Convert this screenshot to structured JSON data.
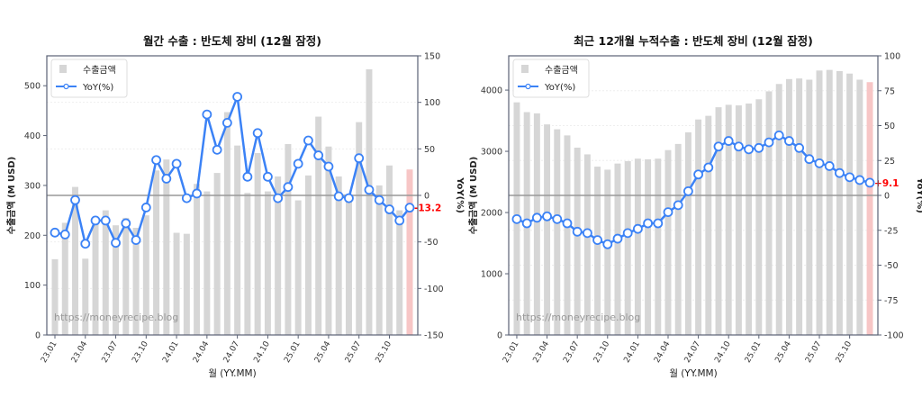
{
  "watermark": "https://moneyrecipe.blog",
  "chart_data": [
    {
      "type": "bar",
      "title": "월간 수출 : 반도체 장비 (12월 잠정)",
      "xlabel": "월 (YY.MM)",
      "ylabel": "수출금액 (M USD)",
      "y2label": "YoY(%)",
      "ylim": [
        0,
        560
      ],
      "y2lim": [
        -150,
        150
      ],
      "yticks": [
        0,
        100,
        200,
        300,
        400,
        500
      ],
      "y2ticks": [
        -150,
        -100,
        -50,
        0,
        50,
        100,
        150
      ],
      "legend": [
        "수출금액",
        "YoY(%)"
      ],
      "legend_position": "upper left",
      "xticklabels": [
        "23.01",
        "23.04",
        "23.07",
        "23.10",
        "24.01",
        "24.04",
        "24.07",
        "24.10",
        "25.01",
        "25.04",
        "25.07",
        "25.10"
      ],
      "categories": [
        "23.01",
        "23.02",
        "23.03",
        "23.04",
        "23.05",
        "23.06",
        "23.07",
        "23.08",
        "23.09",
        "23.10",
        "23.11",
        "23.12",
        "24.01",
        "24.02",
        "24.03",
        "24.04",
        "24.05",
        "24.06",
        "24.07",
        "24.08",
        "24.09",
        "24.10",
        "24.11",
        "24.12",
        "25.01",
        "25.02",
        "25.03",
        "25.04",
        "25.05",
        "25.06",
        "25.07",
        "25.08",
        "25.09",
        "25.10",
        "25.11",
        "25.12"
      ],
      "series": [
        {
          "name": "수출금액",
          "type": "bar",
          "values": [
            152,
            225,
            297,
            153,
            225,
            250,
            220,
            235,
            215,
            240,
            330,
            352,
            205,
            203,
            303,
            288,
            325,
            447,
            380,
            285,
            365,
            288,
            318,
            383,
            270,
            320,
            438,
            378,
            318,
            280,
            427,
            533,
            300,
            340,
            250,
            332
          ]
        },
        {
          "name": "YoY(%)",
          "type": "line",
          "axis": "right",
          "values": [
            -40,
            -42,
            -5,
            -52,
            -27,
            -27,
            -51,
            -30,
            -48,
            -13,
            38,
            18,
            34,
            -3,
            2,
            87,
            49,
            78,
            106,
            20,
            67,
            20,
            -3,
            9,
            34,
            59,
            43,
            31,
            -1,
            -3,
            40,
            6,
            -5,
            -15,
            -27,
            -13.2
          ]
        }
      ],
      "annotation": "-13.2",
      "highlight_last_bar": true
    },
    {
      "type": "bar",
      "title": "최근 12개월 누적수출 : 반도체 장비 (12월 잠정)",
      "xlabel": "월 (YY.MM)",
      "ylabel": "수출금액 (M USD)",
      "y2label": "YoY(%)",
      "ylim": [
        0,
        4560
      ],
      "y2lim": [
        -100,
        100
      ],
      "yticks": [
        0,
        1000,
        2000,
        3000,
        4000
      ],
      "y2ticks": [
        -100,
        -75,
        -50,
        -25,
        0,
        25,
        50,
        75,
        100
      ],
      "legend": [
        "수출금액",
        "YoY(%)"
      ],
      "legend_position": "upper left",
      "xticklabels": [
        "23.01",
        "23.04",
        "23.07",
        "23.10",
        "24.01",
        "24.04",
        "24.07",
        "24.10",
        "25.01",
        "25.04",
        "25.07",
        "25.10"
      ],
      "categories": [
        "23.01",
        "23.02",
        "23.03",
        "23.04",
        "23.05",
        "23.06",
        "23.07",
        "23.08",
        "23.09",
        "23.10",
        "23.11",
        "23.12",
        "24.01",
        "24.02",
        "24.03",
        "24.04",
        "24.05",
        "24.06",
        "24.07",
        "24.08",
        "24.09",
        "24.10",
        "24.11",
        "24.12",
        "25.01",
        "25.02",
        "25.03",
        "25.04",
        "25.05",
        "25.06",
        "25.07",
        "25.08",
        "25.09",
        "25.10",
        "25.11",
        "25.12"
      ],
      "series": [
        {
          "name": "수출금액",
          "type": "bar",
          "values": [
            3800,
            3640,
            3620,
            3440,
            3360,
            3260,
            3060,
            2950,
            2750,
            2700,
            2800,
            2840,
            2880,
            2870,
            2880,
            3020,
            3120,
            3310,
            3520,
            3580,
            3720,
            3760,
            3750,
            3780,
            3850,
            3980,
            4100,
            4180,
            4190,
            4170,
            4320,
            4330,
            4310,
            4270,
            4170,
            4130
          ]
        },
        {
          "name": "YoY(%)",
          "type": "line",
          "axis": "right",
          "values": [
            -17,
            -20,
            -16,
            -15,
            -17,
            -20,
            -26,
            -27,
            -32,
            -35,
            -31,
            -27,
            -24,
            -20,
            -20,
            -12,
            -7,
            3,
            15,
            20,
            35,
            39,
            35,
            33,
            34,
            38,
            43,
            39,
            34,
            26,
            23,
            21,
            16,
            13,
            11,
            9.1
          ]
        }
      ],
      "annotation": "+9.1",
      "highlight_last_bar": true
    }
  ],
  "colors": {
    "bar": "#d6d6d6",
    "bar_last": "#f7c6c6",
    "line": "#3b82f6",
    "annotation": "#ff0000",
    "axis": "#5a6275",
    "zero_line": "#999999"
  }
}
